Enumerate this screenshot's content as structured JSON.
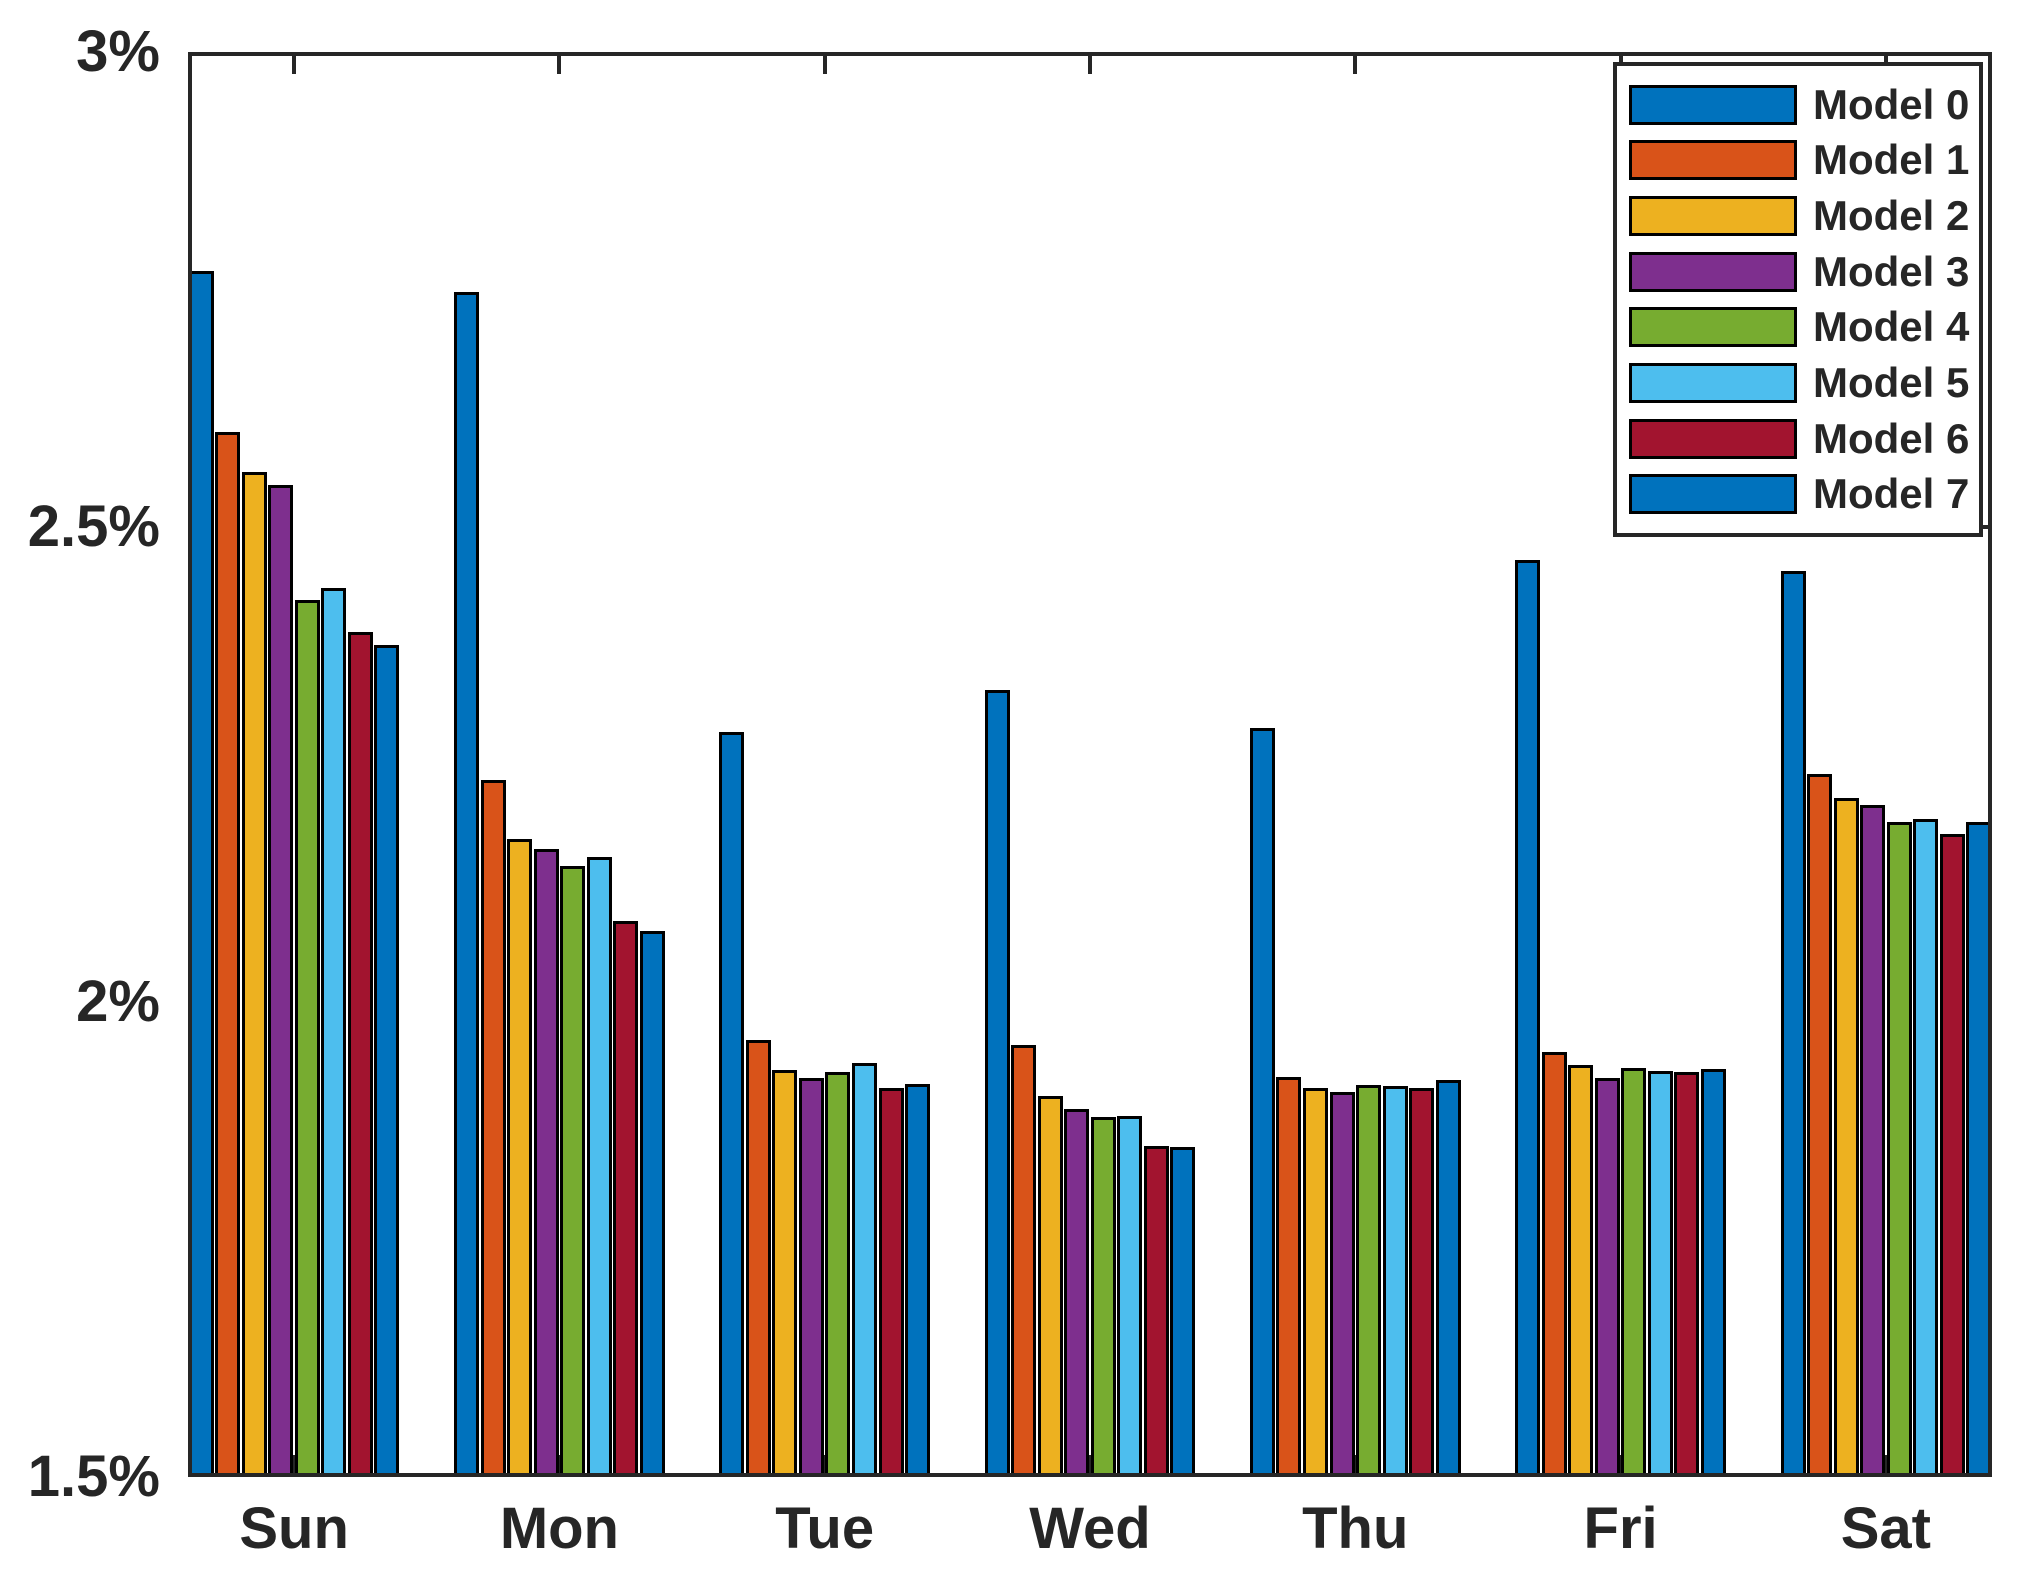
{
  "figure": {
    "background": "#ffffff",
    "axis_color": "#262626",
    "bar_outline_color": "#000000"
  },
  "chart_data": {
    "type": "bar",
    "title": "",
    "xlabel": "",
    "ylabel": "",
    "categories": [
      "Sun",
      "Mon",
      "Tue",
      "Wed",
      "Thu",
      "Fri",
      "Sat"
    ],
    "series": [
      {
        "name": "Model 0",
        "color": "#0072BD",
        "values": [
          2.77,
          2.747,
          2.284,
          2.328,
          2.288,
          2.465,
          2.454
        ]
      },
      {
        "name": "Model 1",
        "color": "#D95319",
        "values": [
          2.6,
          2.234,
          1.96,
          1.955,
          1.921,
          1.947,
          2.24
        ]
      },
      {
        "name": "Model 2",
        "color": "#EDB120",
        "values": [
          2.558,
          2.172,
          1.928,
          1.901,
          1.91,
          1.934,
          2.215
        ]
      },
      {
        "name": "Model 3",
        "color": "#7E2F8E",
        "values": [
          2.544,
          2.161,
          1.92,
          1.887,
          1.905,
          1.92,
          2.207
        ]
      },
      {
        "name": "Model 4",
        "color": "#77AC30",
        "values": [
          2.423,
          2.143,
          1.926,
          1.879,
          1.913,
          1.931,
          2.189
        ]
      },
      {
        "name": "Model 5",
        "color": "#4DBEEE",
        "values": [
          2.436,
          2.153,
          1.936,
          1.88,
          1.912,
          1.927,
          2.193
        ]
      },
      {
        "name": "Model 6",
        "color": "#A2142F",
        "values": [
          2.389,
          2.085,
          1.909,
          1.848,
          1.91,
          1.926,
          2.177
        ]
      },
      {
        "name": "Model 7",
        "color": "#0072BD",
        "values": [
          2.376,
          2.075,
          1.914,
          1.847,
          1.918,
          1.93,
          2.19
        ]
      }
    ],
    "ylim": [
      1.5,
      3.0
    ],
    "yticks": [
      1.5,
      2.0,
      2.5,
      3.0
    ],
    "ytick_labels_desc": [
      "3%",
      "2.5%",
      "2%",
      "1.5%"
    ],
    "unit": "%",
    "grid": false,
    "legend": {
      "position": "top-right",
      "entries": [
        "Model 0",
        "Model 1",
        "Model 2",
        "Model 3",
        "Model 4",
        "Model 5",
        "Model 6",
        "Model 7"
      ]
    }
  }
}
